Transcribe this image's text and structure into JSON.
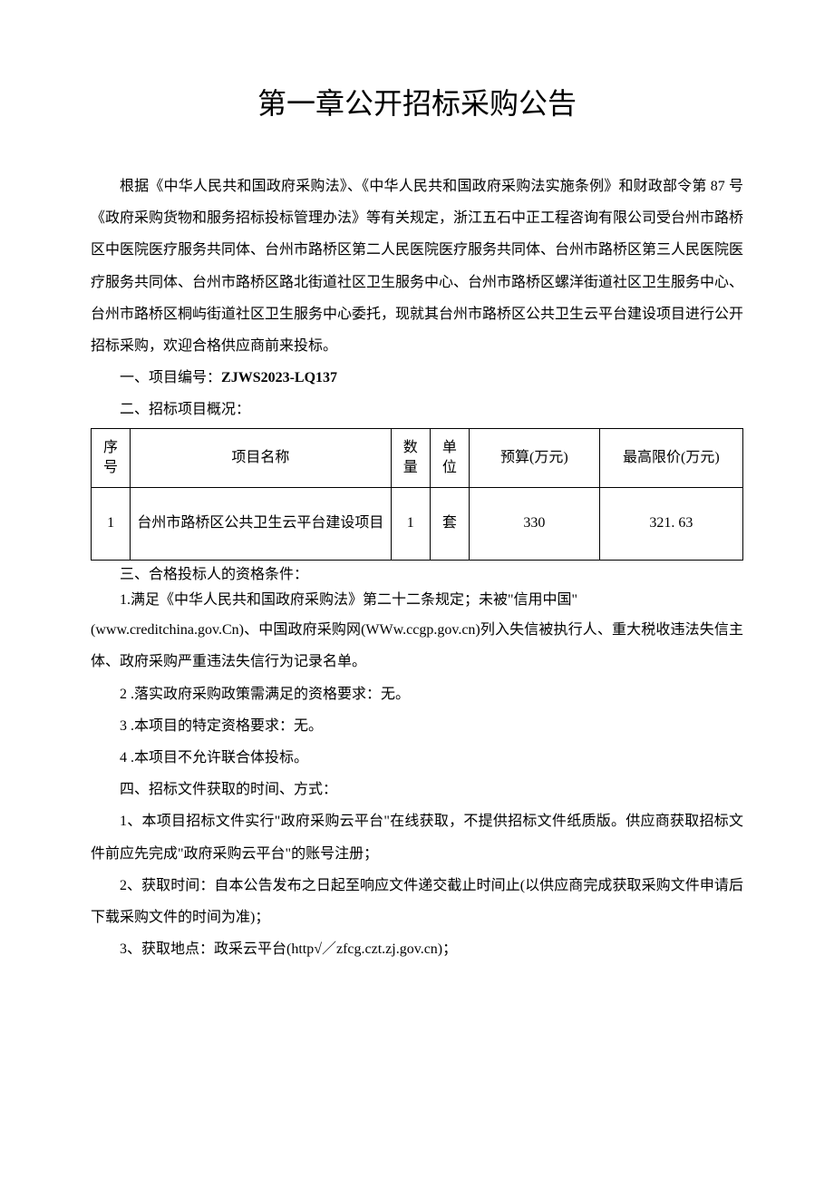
{
  "title": "第一章公开招标采购公告",
  "intro": "根据《中华人民共和国政府采购法》、《中华人民共和国政府采购法实施条例》和财政部令第 87 号《政府采购货物和服务招标投标管理办法》等有关规定，浙江五石中正工程咨询有限公司受台州市路桥区中医院医疗服务共同体、台州市路桥区第二人民医院医疗服务共同体、台州市路桥区第三人民医院医疗服务共同体、台州市路桥区路北街道社区卫生服务中心、台州市路桥区螺洋街道社区卫生服务中心、台州市路桥区桐屿街道社区卫生服务中心委托，现就其台州市路桥区公共卫生云平台建设项目进行公开招标采购，欢迎合格供应商前来投标。",
  "section1_label": "一、项目编号：",
  "section1_value": "ZJWS2023-LQ137",
  "section2_label": "二、招标项目概况：",
  "table": {
    "headers": {
      "seq": "序号",
      "name": "项目名称",
      "qty": "数量",
      "unit": "单位",
      "budget": "预算(万元)",
      "max": "最高限价(万元)"
    },
    "rows": [
      {
        "seq": "1",
        "name": "台州市路桥区公共卫生云平台建设项目",
        "qty": "1",
        "unit": "套",
        "budget": "330",
        "max": "321. 63"
      }
    ]
  },
  "section3_label": "三、合格投标人的资格条件：",
  "cond1_a": "1.满足《中华人民共和国政府采购法》第二十二条规定；未被\"信用中国\"",
  "cond1_b": "(www.creditchina.gov.Cn)、中国政府采购网(WWw.ccgp.gov.cn)列入失信被执行人、重大税收违法失信主体、政府采购严重违法失信行为记录名单。",
  "cond2": "2 .落实政府采购政策需满足的资格要求：无。",
  "cond3": "3 .本项目的特定资格要求：无。",
  "cond4": "4 .本项目不允许联合体投标。",
  "section4_label": "四、招标文件获取的时间、方式：",
  "obtain1": "1、本项目招标文件实行\"政府采购云平台\"在线获取，不提供招标文件纸质版。供应商获取招标文件前应先完成\"政府采购云平台\"的账号注册；",
  "obtain2": "2、获取时间：自本公告发布之日起至响应文件递交截止时间止(以供应商完成获取采购文件申请后下载采购文件的时间为准)；",
  "obtain3": "3、获取地点：政采云平台(http√／zfcg.czt.zj.gov.cn)；"
}
